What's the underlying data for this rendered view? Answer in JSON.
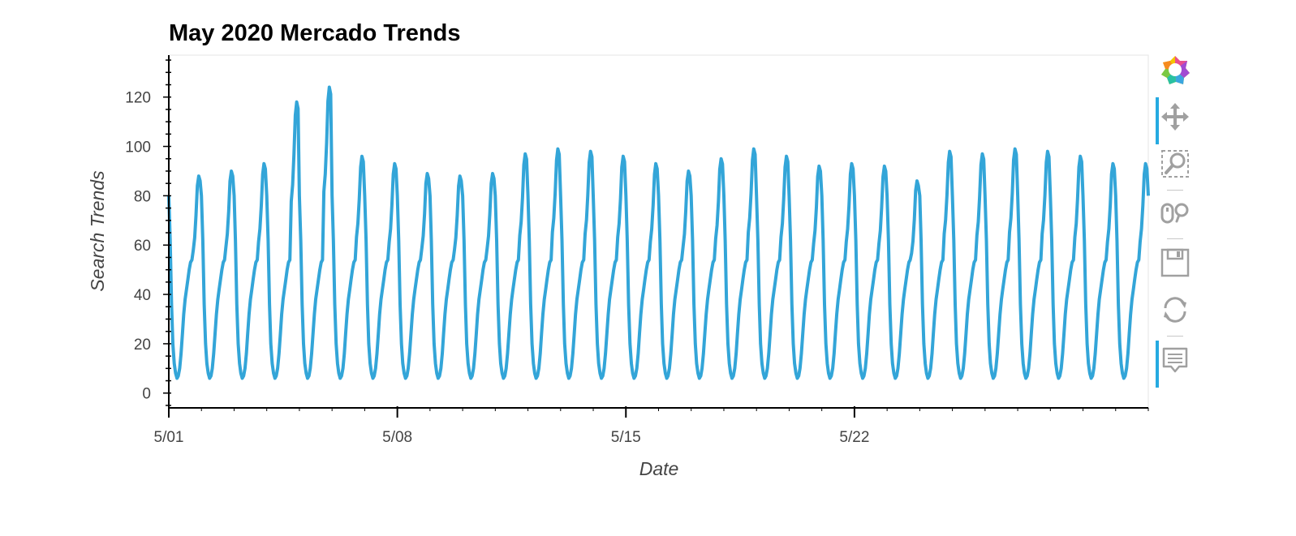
{
  "chart_data": {
    "type": "line",
    "title": "May 2020 Mercado Trends",
    "xlabel": "Date",
    "ylabel": "Search Trends",
    "x_range": [
      "2020-05-01T00:00",
      "2020-05-31T00:00"
    ],
    "ylim": [
      -6,
      137
    ],
    "y_ticks": [
      0,
      20,
      40,
      60,
      80,
      100,
      120
    ],
    "x_ticks": [
      {
        "value": "2020-05-01",
        "label": "5/01"
      },
      {
        "value": "2020-05-08",
        "label": "5/08"
      },
      {
        "value": "2020-05-15",
        "label": "5/15"
      },
      {
        "value": "2020-05-22",
        "label": "5/22"
      }
    ],
    "grid": false,
    "series": [
      {
        "color": "#33a5d8",
        "sampling": "hourly",
        "start": "2020-05-01T00:00",
        "daily_profile": [
          80,
          62,
          36,
          20,
          12,
          8,
          6,
          7,
          10,
          16,
          24,
          32,
          38,
          42,
          46,
          50,
          53,
          54,
          58,
          63,
          72,
          84,
          88,
          86
        ],
        "daily_peaks": [
          88,
          90,
          93,
          118,
          124,
          96,
          93,
          89,
          88,
          89,
          97,
          99,
          98,
          96,
          93,
          90,
          95,
          99,
          96,
          92,
          93,
          92,
          86,
          98,
          97,
          99,
          98,
          96,
          93,
          93,
          95
        ],
        "peak_hour": 22
      }
    ]
  },
  "toolbar": {
    "logo_icon": "bokeh-logo-icon",
    "tools": [
      {
        "name": "pan-tool",
        "icon": "pan-icon",
        "active": true
      },
      {
        "name": "box-zoom-tool",
        "icon": "box-zoom-icon",
        "active": true
      },
      {
        "name": "wheel-zoom-tool",
        "icon": "wheel-zoom-icon",
        "active": false
      },
      {
        "name": "save-tool",
        "icon": "save-icon",
        "active": false
      },
      {
        "name": "reset-tool",
        "icon": "reset-icon",
        "active": false
      },
      {
        "name": "hover-tool",
        "icon": "hover-icon",
        "active": true
      }
    ]
  }
}
